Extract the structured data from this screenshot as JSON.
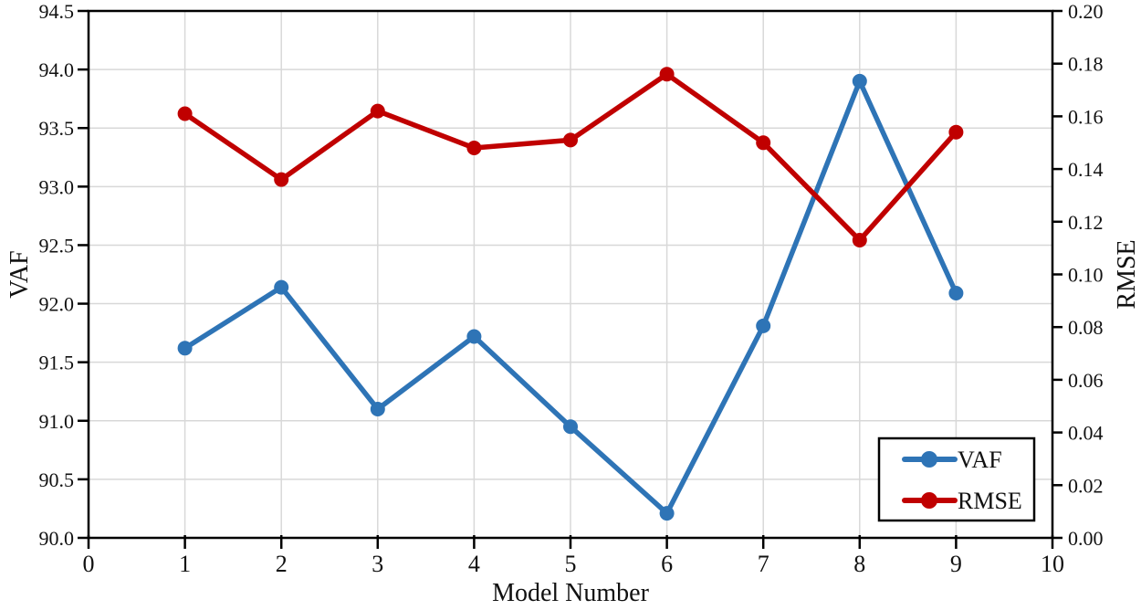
{
  "chart_data": {
    "type": "line",
    "title": "",
    "xlabel": "Model Number",
    "ylabel_left": "VAF",
    "ylabel_right": "RMSE",
    "x": [
      1,
      2,
      3,
      4,
      5,
      6,
      7,
      8,
      9
    ],
    "series": [
      {
        "name": "VAF",
        "axis": "left",
        "color": "#2E74B6",
        "marker": "circle",
        "values": [
          91.62,
          92.14,
          91.1,
          91.72,
          90.95,
          90.21,
          91.81,
          93.9,
          92.09
        ]
      },
      {
        "name": "RMSE",
        "axis": "right",
        "color": "#C00000",
        "marker": "circle",
        "values": [
          0.161,
          0.136,
          0.162,
          0.148,
          0.151,
          0.176,
          0.15,
          0.113,
          0.154
        ]
      }
    ],
    "xlim": [
      0,
      10
    ],
    "ylim_left": [
      90.0,
      94.5
    ],
    "ylim_right": [
      0.0,
      0.2
    ],
    "xticks": [
      "0",
      "1",
      "2",
      "3",
      "4",
      "5",
      "6",
      "7",
      "8",
      "9",
      "10"
    ],
    "yticks_left": [
      "90.0",
      "90.5",
      "91.0",
      "91.5",
      "92.0",
      "92.5",
      "93.0",
      "93.5",
      "94.0",
      "94.5"
    ],
    "yticks_right": [
      "0.00",
      "0.02",
      "0.04",
      "0.06",
      "0.08",
      "0.10",
      "0.12",
      "0.14",
      "0.16",
      "0.18",
      "0.20"
    ],
    "grid": true,
    "gridline_color": "#D8D8D8",
    "frame_color": "#000000",
    "legend_position": "lower right",
    "legend": [
      {
        "label": "VAF",
        "color": "#2E74B6"
      },
      {
        "label": "RMSE",
        "color": "#C00000"
      }
    ]
  }
}
